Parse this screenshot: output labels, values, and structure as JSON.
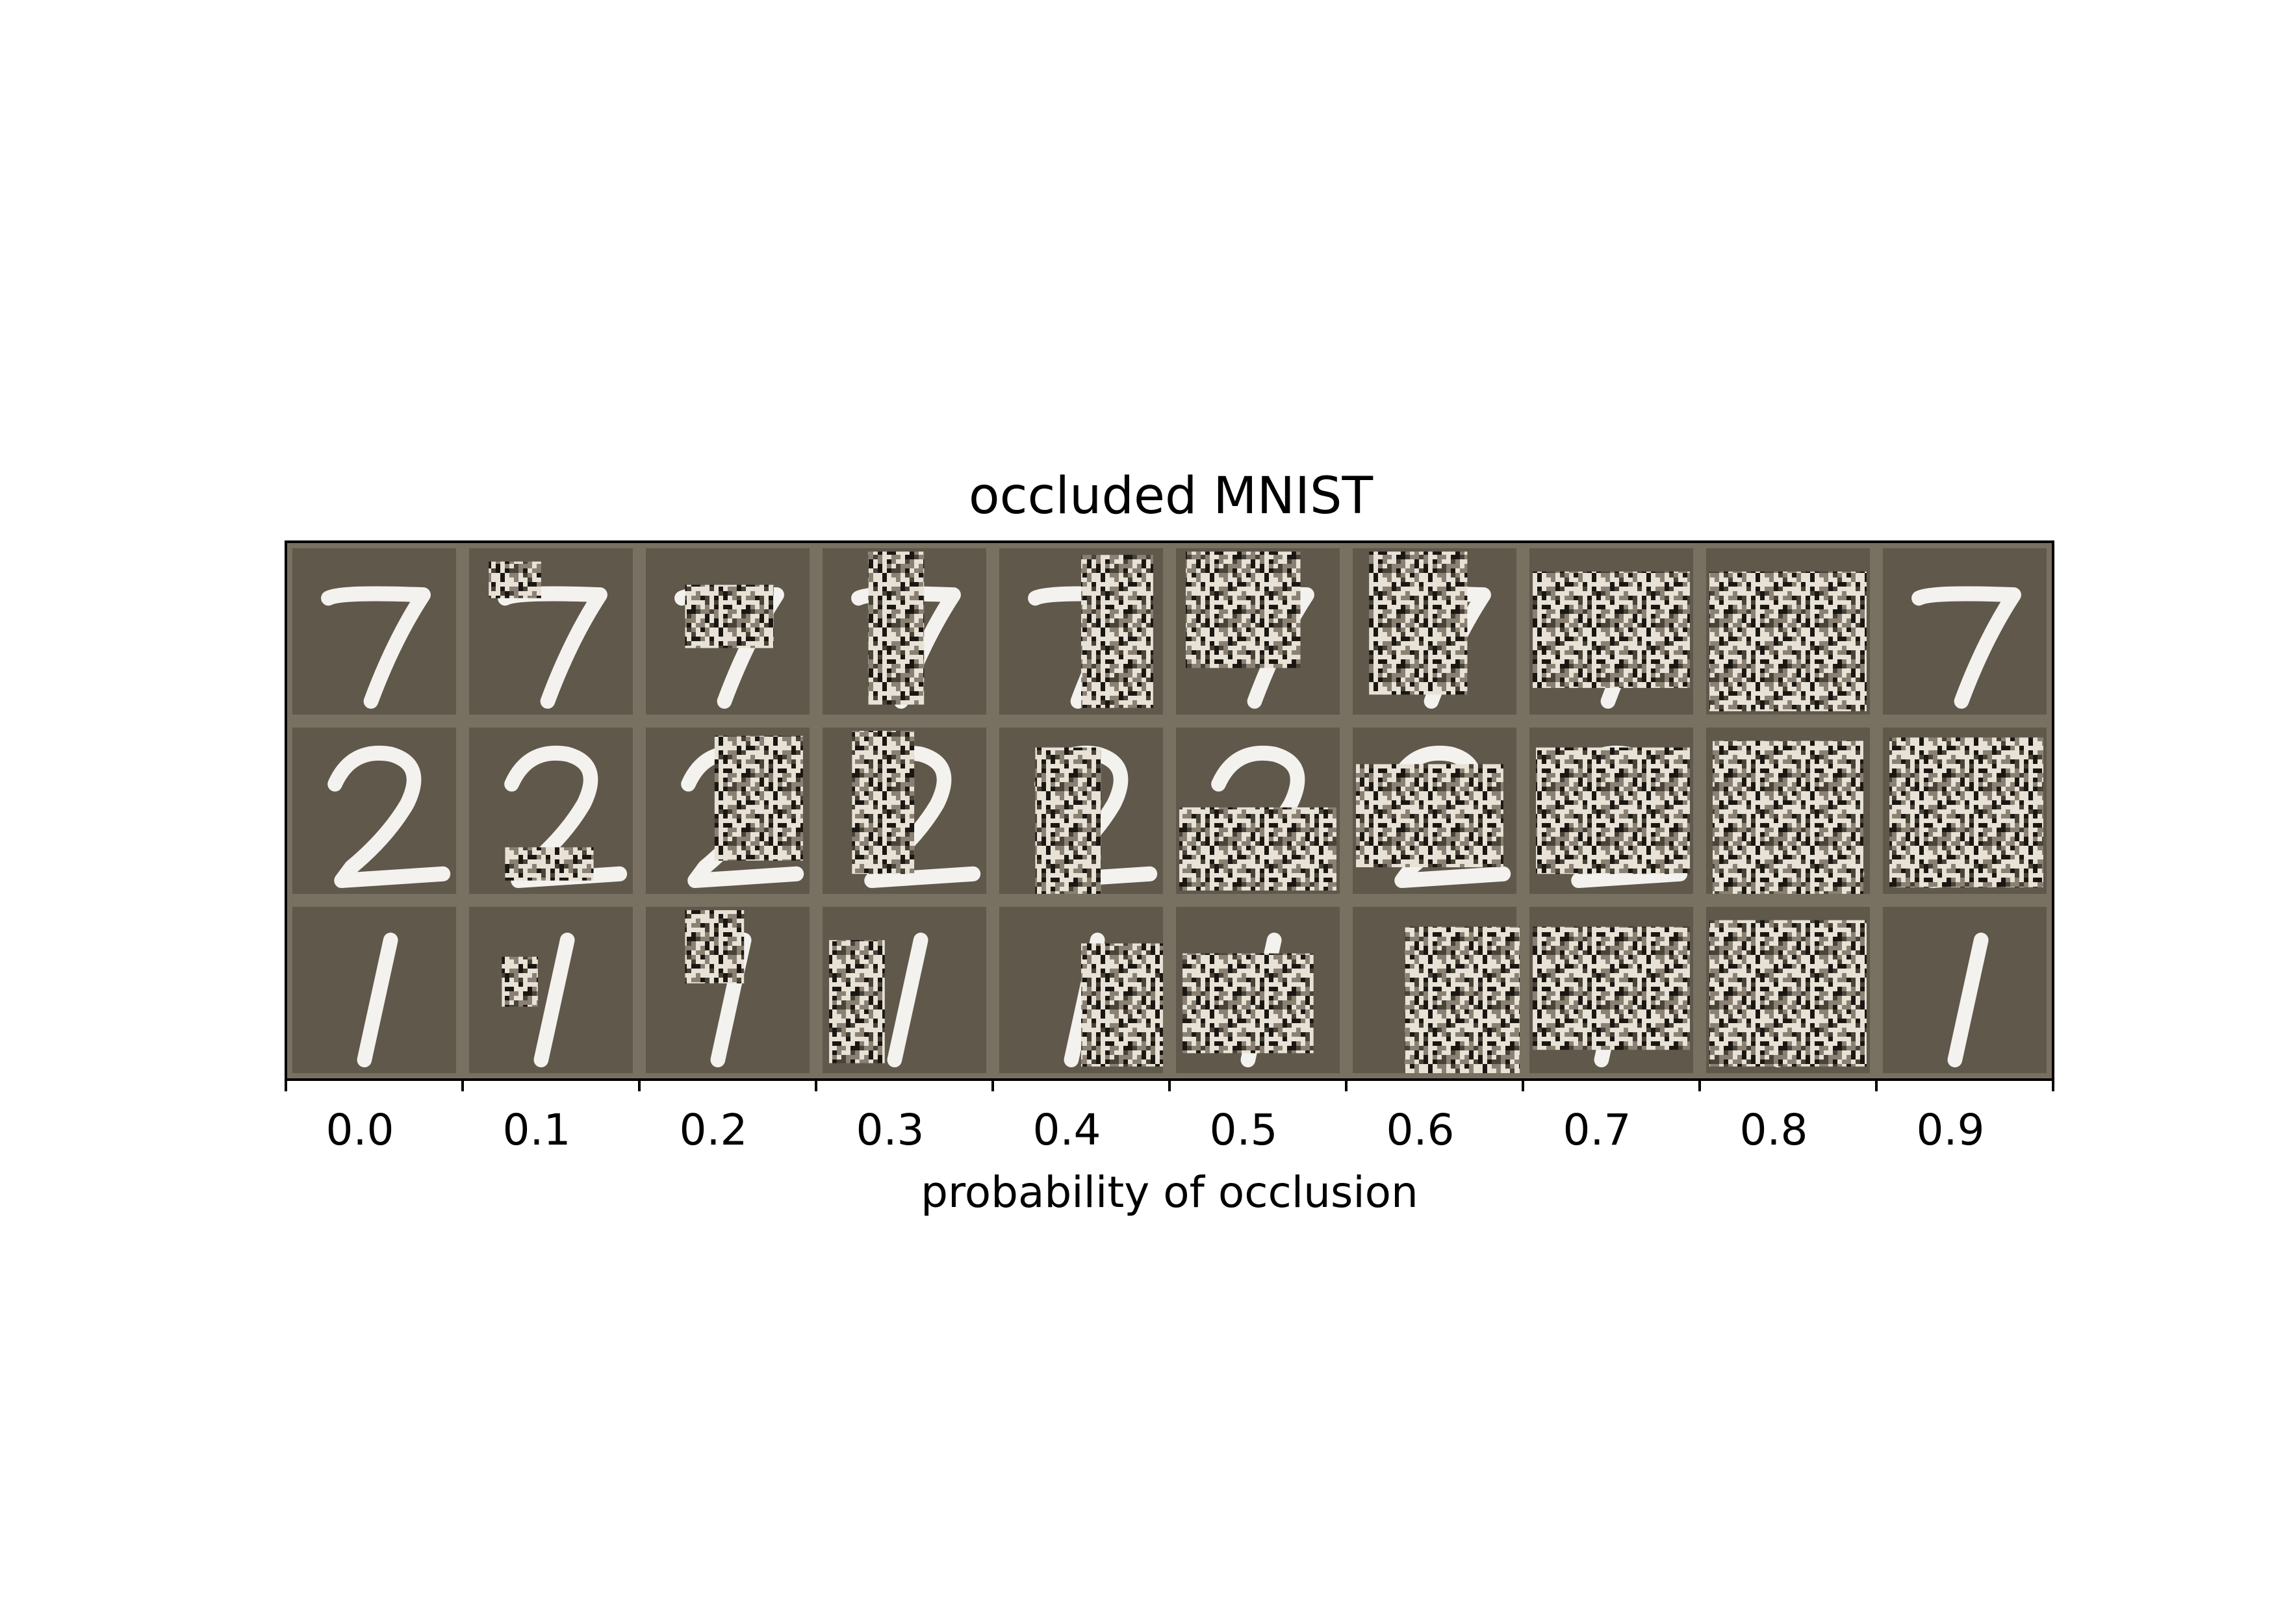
{
  "chart_data": {
    "type": "image_grid",
    "title": "occluded MNIST",
    "xlabel": "probability of occlusion",
    "ylabel": "",
    "x_tick_labels": [
      "0.0",
      "0.1",
      "0.2",
      "0.3",
      "0.4",
      "0.5",
      "0.6",
      "0.7",
      "0.8",
      "0.9"
    ],
    "rows": [
      {
        "digit": "7",
        "cells": [
          {
            "occlusion": "none"
          },
          {
            "occlusion": "patch"
          },
          {
            "occlusion": "patch"
          },
          {
            "occlusion": "patch"
          },
          {
            "occlusion": "patch"
          },
          {
            "occlusion": "patch"
          },
          {
            "occlusion": "patch"
          },
          {
            "occlusion": "patch"
          },
          {
            "occlusion": "patch"
          },
          {
            "occlusion": "none"
          }
        ]
      },
      {
        "digit": "2",
        "cells": [
          {
            "occlusion": "none"
          },
          {
            "occlusion": "patch"
          },
          {
            "occlusion": "patch"
          },
          {
            "occlusion": "patch"
          },
          {
            "occlusion": "patch"
          },
          {
            "occlusion": "patch"
          },
          {
            "occlusion": "patch"
          },
          {
            "occlusion": "patch"
          },
          {
            "occlusion": "patch"
          },
          {
            "occlusion": "patch"
          }
        ]
      },
      {
        "digit": "1",
        "cells": [
          {
            "occlusion": "none"
          },
          {
            "occlusion": "patch"
          },
          {
            "occlusion": "patch"
          },
          {
            "occlusion": "patch"
          },
          {
            "occlusion": "patch"
          },
          {
            "occlusion": "patch"
          },
          {
            "occlusion": "patch"
          },
          {
            "occlusion": "patch"
          },
          {
            "occlusion": "patch"
          },
          {
            "occlusion": "none"
          }
        ]
      }
    ],
    "colors": {
      "cell_background": "#5f584b",
      "grid_border": "#787060",
      "stroke": "#f4f2ee",
      "noise_light": "#e8e2d6",
      "noise_dark": "#1a1612"
    },
    "grid": false,
    "legend": "none"
  }
}
